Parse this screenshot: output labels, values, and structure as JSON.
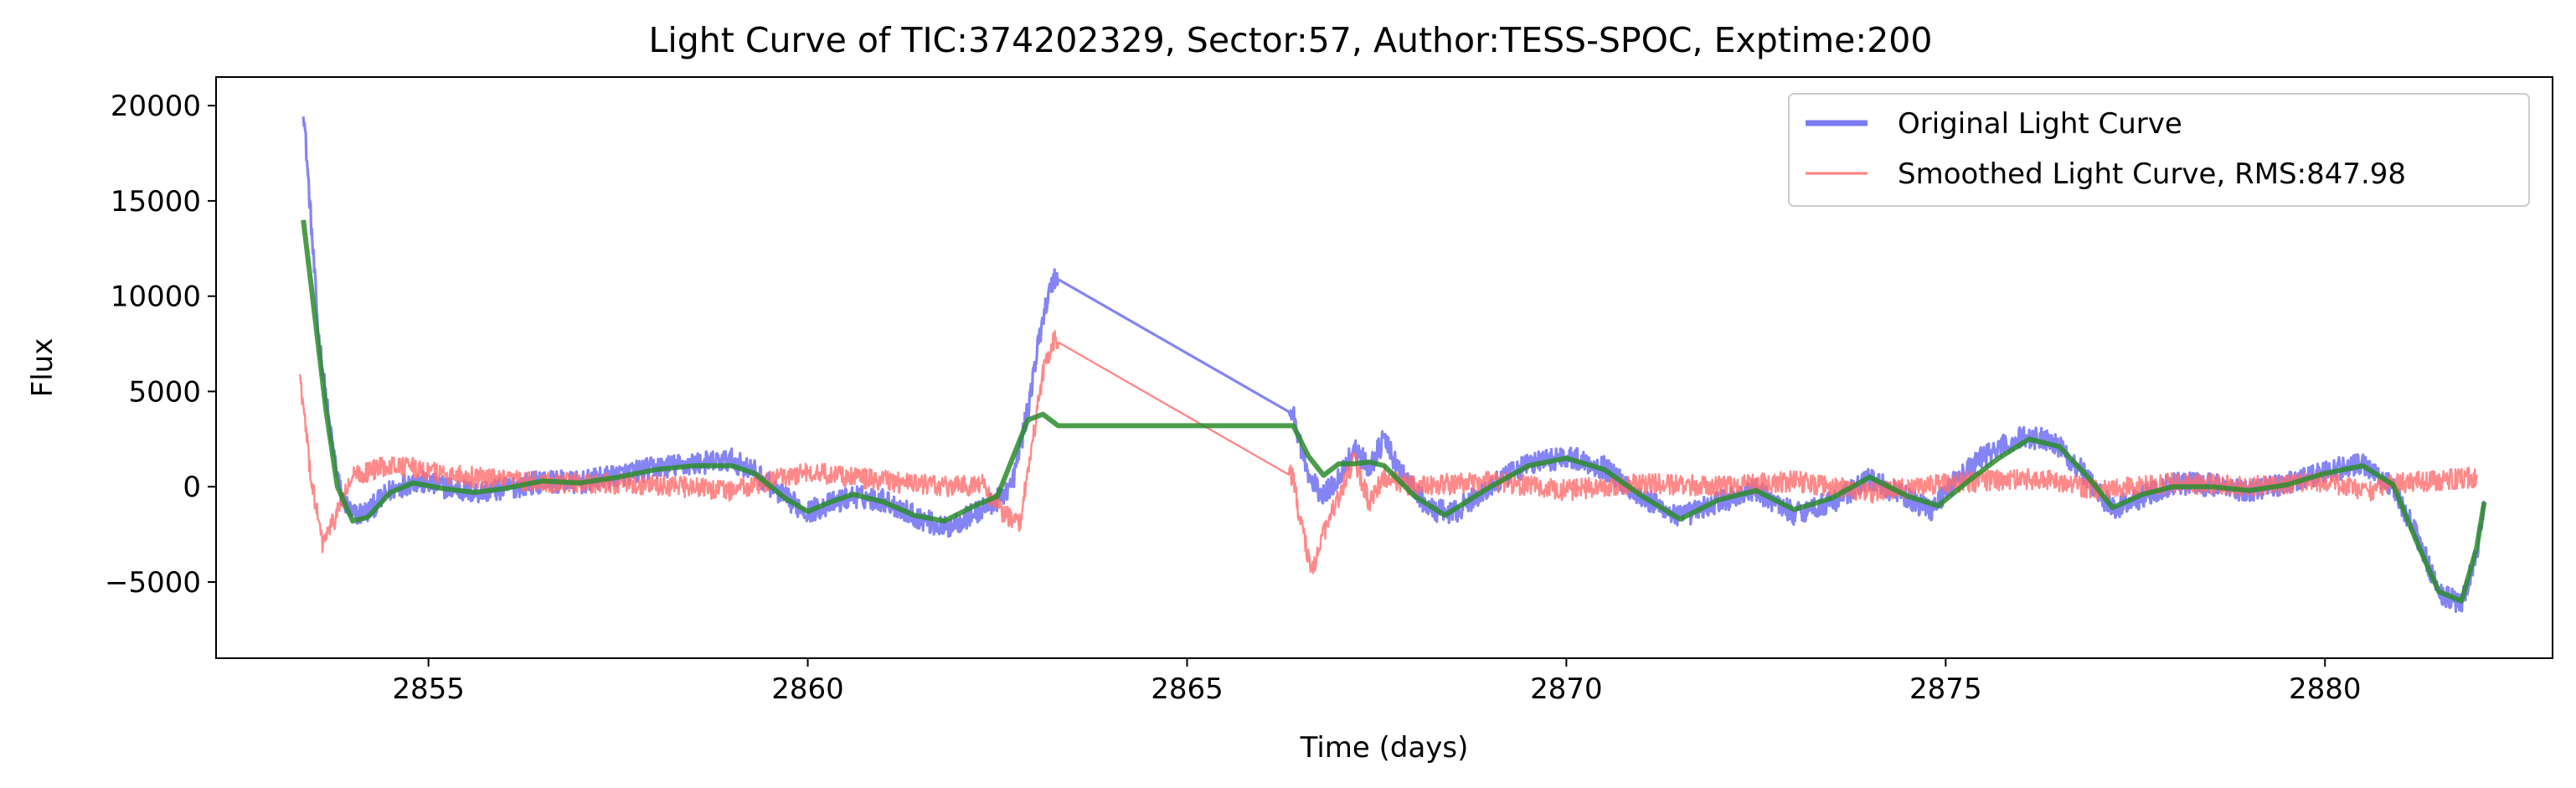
{
  "chart_data": {
    "type": "line",
    "title": "Light Curve of TIC:374202329, Sector:57, Author:TESS-SPOC, Exptime:200",
    "xlabel": "Time (days)",
    "ylabel": "Flux",
    "xlim": [
      2852.2,
      2883.0
    ],
    "ylim": [
      -9000,
      21500
    ],
    "xticks": [
      2855,
      2860,
      2865,
      2870,
      2875,
      2880
    ],
    "xtick_labels": [
      "2855",
      "2860",
      "2865",
      "2870",
      "2875",
      "2880"
    ],
    "yticks": [
      -5000,
      0,
      5000,
      10000,
      15000,
      20000
    ],
    "ytick_labels": [
      "−5000",
      "0",
      "5000",
      "10000",
      "15000",
      "20000"
    ],
    "grid": false,
    "legend_position": "top-right",
    "legend": [
      {
        "label": "Original Light Curve",
        "color": "#7b7bf5"
      },
      {
        "label": "Smoothed Light Curve, RMS:847.98",
        "color": "#ff7f7f"
      }
    ],
    "series": [
      {
        "name": "Original Light Curve",
        "color": "#6f6ff2",
        "opacity": 0.85,
        "noise": 600,
        "points": [
          [
            2853.35,
            20000
          ],
          [
            2853.45,
            14000
          ],
          [
            2853.55,
            8000
          ],
          [
            2853.7,
            3000
          ],
          [
            2853.85,
            -500
          ],
          [
            2854.0,
            -1500
          ],
          [
            2854.2,
            -1300
          ],
          [
            2854.5,
            -200
          ],
          [
            2854.8,
            300
          ],
          [
            2855.2,
            0
          ],
          [
            2855.6,
            -300
          ],
          [
            2856.0,
            -100
          ],
          [
            2856.5,
            300
          ],
          [
            2857.0,
            200
          ],
          [
            2857.5,
            600
          ],
          [
            2858.0,
            1000
          ],
          [
            2858.5,
            1200
          ],
          [
            2859.0,
            1400
          ],
          [
            2859.3,
            800
          ],
          [
            2859.7,
            -600
          ],
          [
            2860.0,
            -1300
          ],
          [
            2860.3,
            -900
          ],
          [
            2860.6,
            -500
          ],
          [
            2861.0,
            -700
          ],
          [
            2861.4,
            -1500
          ],
          [
            2861.8,
            -2200
          ],
          [
            2862.2,
            -1400
          ],
          [
            2862.5,
            -700
          ],
          [
            2862.7,
            200
          ],
          [
            2862.9,
            4000
          ],
          [
            2863.1,
            9000
          ],
          [
            2863.25,
            11000
          ],
          [
            2866.4,
            3800
          ],
          [
            2866.6,
            500
          ],
          [
            2866.8,
            -500
          ],
          [
            2867.0,
            500
          ],
          [
            2867.2,
            2000
          ],
          [
            2867.4,
            1000
          ],
          [
            2867.6,
            2500
          ],
          [
            2867.8,
            800
          ],
          [
            2868.2,
            -1200
          ],
          [
            2868.5,
            -1400
          ],
          [
            2869.0,
            0
          ],
          [
            2869.5,
            1200
          ],
          [
            2870.0,
            1600
          ],
          [
            2870.5,
            1000
          ],
          [
            2871.0,
            -600
          ],
          [
            2871.5,
            -1600
          ],
          [
            2872.0,
            -800
          ],
          [
            2872.5,
            -200
          ],
          [
            2873.0,
            -1400
          ],
          [
            2873.5,
            -800
          ],
          [
            2874.0,
            400
          ],
          [
            2874.5,
            -600
          ],
          [
            2874.8,
            -1200
          ],
          [
            2875.1,
            200
          ],
          [
            2875.5,
            1600
          ],
          [
            2876.0,
            2600
          ],
          [
            2876.4,
            2500
          ],
          [
            2876.8,
            800
          ],
          [
            2877.2,
            -1200
          ],
          [
            2877.6,
            -500
          ],
          [
            2878.0,
            200
          ],
          [
            2878.5,
            100
          ],
          [
            2879.0,
            -200
          ],
          [
            2879.5,
            200
          ],
          [
            2880.0,
            800
          ],
          [
            2880.5,
            1200
          ],
          [
            2880.9,
            0
          ],
          [
            2881.2,
            -2500
          ],
          [
            2881.5,
            -5500
          ],
          [
            2881.8,
            -6200
          ],
          [
            2882.0,
            -3500
          ],
          [
            2882.1,
            -800
          ]
        ],
        "gaps": [
          [
            2863.3,
            2866.35
          ]
        ]
      },
      {
        "name": "Smoothed Light Curve, RMS:847.98",
        "color": "#ff6b6b",
        "opacity": 0.8,
        "noise": 550,
        "points": [
          [
            2853.3,
            6000
          ],
          [
            2853.45,
            500
          ],
          [
            2853.6,
            -3000
          ],
          [
            2853.75,
            -1800
          ],
          [
            2854.0,
            500
          ],
          [
            2854.5,
            1200
          ],
          [
            2855.0,
            800
          ],
          [
            2856.0,
            300
          ],
          [
            2857.0,
            200
          ],
          [
            2858.0,
            100
          ],
          [
            2859.0,
            -200
          ],
          [
            2859.5,
            300
          ],
          [
            2860.0,
            800
          ],
          [
            2860.6,
            500
          ],
          [
            2861.0,
            300
          ],
          [
            2861.8,
            0
          ],
          [
            2862.3,
            100
          ],
          [
            2862.6,
            -1500
          ],
          [
            2862.8,
            -1800
          ],
          [
            2862.95,
            2000
          ],
          [
            2863.1,
            6000
          ],
          [
            2863.25,
            7700
          ],
          [
            2866.4,
            500
          ],
          [
            2866.5,
            -2000
          ],
          [
            2866.65,
            -4500
          ],
          [
            2866.8,
            -2500
          ],
          [
            2867.0,
            -500
          ],
          [
            2867.2,
            1500
          ],
          [
            2867.4,
            -800
          ],
          [
            2867.6,
            500
          ],
          [
            2868.0,
            0
          ],
          [
            2869.0,
            300
          ],
          [
            2870.0,
            -200
          ],
          [
            2871.0,
            200
          ],
          [
            2872.0,
            0
          ],
          [
            2873.0,
            300
          ],
          [
            2874.0,
            -300
          ],
          [
            2875.0,
            200
          ],
          [
            2876.0,
            400
          ],
          [
            2876.5,
            300
          ],
          [
            2877.0,
            -200
          ],
          [
            2878.0,
            200
          ],
          [
            2879.0,
            0
          ],
          [
            2880.0,
            300
          ],
          [
            2880.5,
            -300
          ],
          [
            2881.0,
            200
          ],
          [
            2882.0,
            500
          ]
        ],
        "gaps": [
          [
            2863.3,
            2866.35
          ]
        ]
      },
      {
        "name": "",
        "color": "#2b8c2b",
        "opacity": 0.85,
        "noise": 0,
        "points": [
          [
            2853.35,
            14000
          ],
          [
            2853.5,
            9000
          ],
          [
            2853.65,
            4000
          ],
          [
            2853.8,
            0
          ],
          [
            2854.0,
            -1800
          ],
          [
            2854.2,
            -1600
          ],
          [
            2854.5,
            -300
          ],
          [
            2854.8,
            200
          ],
          [
            2855.2,
            -100
          ],
          [
            2855.6,
            -300
          ],
          [
            2856.0,
            -100
          ],
          [
            2856.5,
            300
          ],
          [
            2857.0,
            200
          ],
          [
            2857.5,
            500
          ],
          [
            2858.0,
            900
          ],
          [
            2858.5,
            1100
          ],
          [
            2859.0,
            1100
          ],
          [
            2859.3,
            700
          ],
          [
            2859.7,
            -600
          ],
          [
            2860.0,
            -1300
          ],
          [
            2860.3,
            -800
          ],
          [
            2860.6,
            -400
          ],
          [
            2861.0,
            -800
          ],
          [
            2861.4,
            -1500
          ],
          [
            2861.8,
            -1800
          ],
          [
            2862.2,
            -1000
          ],
          [
            2862.5,
            -500
          ],
          [
            2862.7,
            1500
          ],
          [
            2862.9,
            3500
          ],
          [
            2863.1,
            3800
          ],
          [
            2863.3,
            3200
          ],
          [
            2866.4,
            3200
          ],
          [
            2866.6,
            1600
          ],
          [
            2866.8,
            600
          ],
          [
            2867.0,
            1200
          ],
          [
            2867.2,
            1200
          ],
          [
            2867.4,
            1300
          ],
          [
            2867.6,
            1100
          ],
          [
            2868.0,
            -500
          ],
          [
            2868.4,
            -1500
          ],
          [
            2869.0,
            0
          ],
          [
            2869.5,
            1100
          ],
          [
            2870.0,
            1500
          ],
          [
            2870.5,
            900
          ],
          [
            2871.0,
            -500
          ],
          [
            2871.5,
            -1700
          ],
          [
            2872.0,
            -700
          ],
          [
            2872.5,
            -200
          ],
          [
            2873.0,
            -1200
          ],
          [
            2873.5,
            -600
          ],
          [
            2874.0,
            500
          ],
          [
            2874.5,
            -500
          ],
          [
            2874.9,
            -1000
          ],
          [
            2875.3,
            300
          ],
          [
            2875.7,
            1500
          ],
          [
            2876.1,
            2500
          ],
          [
            2876.5,
            2100
          ],
          [
            2876.9,
            400
          ],
          [
            2877.2,
            -1100
          ],
          [
            2877.6,
            -400
          ],
          [
            2878.0,
            0
          ],
          [
            2878.5,
            0
          ],
          [
            2879.0,
            -200
          ],
          [
            2879.5,
            100
          ],
          [
            2880.0,
            700
          ],
          [
            2880.5,
            1100
          ],
          [
            2880.9,
            100
          ],
          [
            2881.2,
            -2800
          ],
          [
            2881.5,
            -5500
          ],
          [
            2881.8,
            -6000
          ],
          [
            2882.0,
            -3200
          ],
          [
            2882.1,
            -800
          ]
        ],
        "gaps": []
      }
    ]
  }
}
